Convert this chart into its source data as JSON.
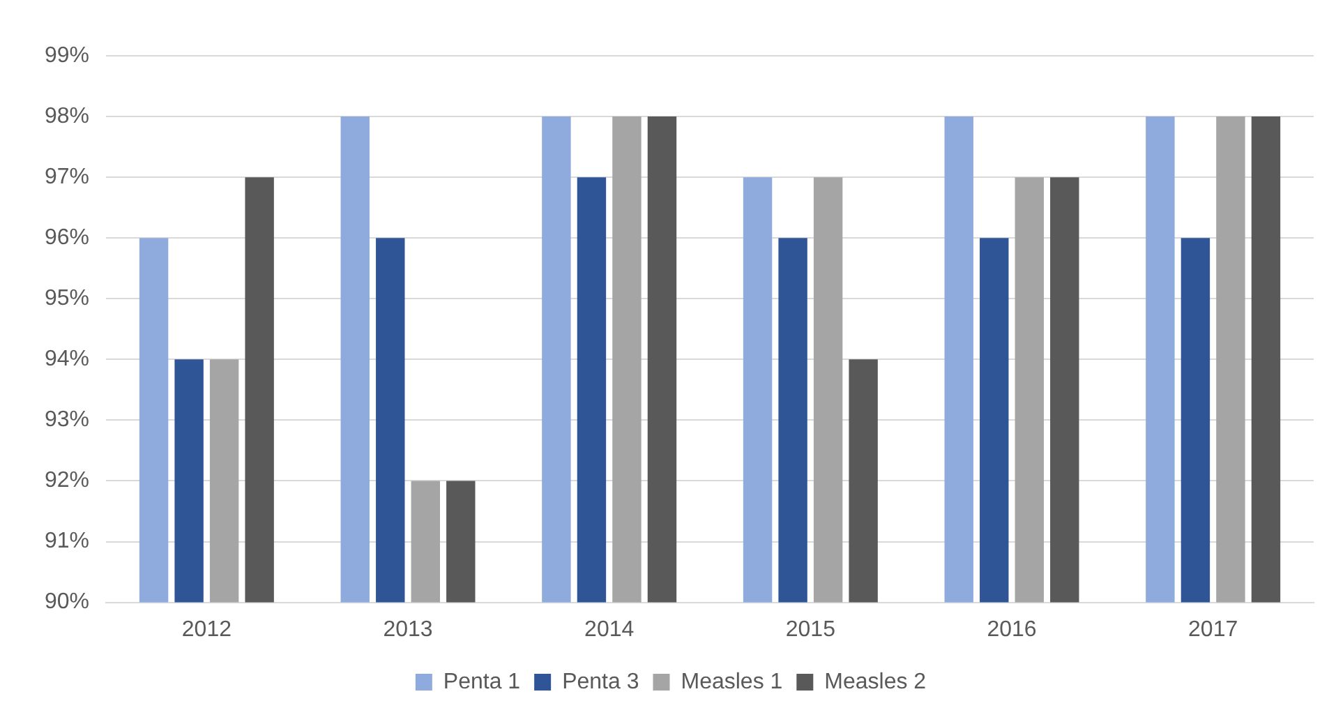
{
  "chart_data": {
    "type": "bar",
    "categories": [
      "2012",
      "2013",
      "2014",
      "2015",
      "2016",
      "2017"
    ],
    "series": [
      {
        "name": "Penta 1",
        "color": "#8faadc",
        "values": [
          96,
          98,
          98,
          97,
          98,
          98
        ]
      },
      {
        "name": "Penta 3",
        "color": "#2f5597",
        "values": [
          94,
          96,
          97,
          96,
          96,
          96
        ]
      },
      {
        "name": "Measles 1",
        "color": "#a5a5a5",
        "values": [
          94,
          92,
          98,
          97,
          97,
          98
        ]
      },
      {
        "name": "Measles 2",
        "color": "#595959",
        "values": [
          97,
          92,
          98,
          94,
          97,
          98
        ]
      }
    ],
    "ylim": [
      90,
      99
    ],
    "yticks": [
      {
        "value": 90,
        "label": "90%"
      },
      {
        "value": 91,
        "label": "91%"
      },
      {
        "value": 92,
        "label": "92%"
      },
      {
        "value": 93,
        "label": "93%"
      },
      {
        "value": 94,
        "label": "94%"
      },
      {
        "value": 95,
        "label": "95%"
      },
      {
        "value": 96,
        "label": "96%"
      },
      {
        "value": 97,
        "label": "97%"
      },
      {
        "value": 98,
        "label": "98%"
      },
      {
        "value": 99,
        "label": "99%"
      }
    ],
    "grid": "y",
    "legend": "bottom"
  }
}
